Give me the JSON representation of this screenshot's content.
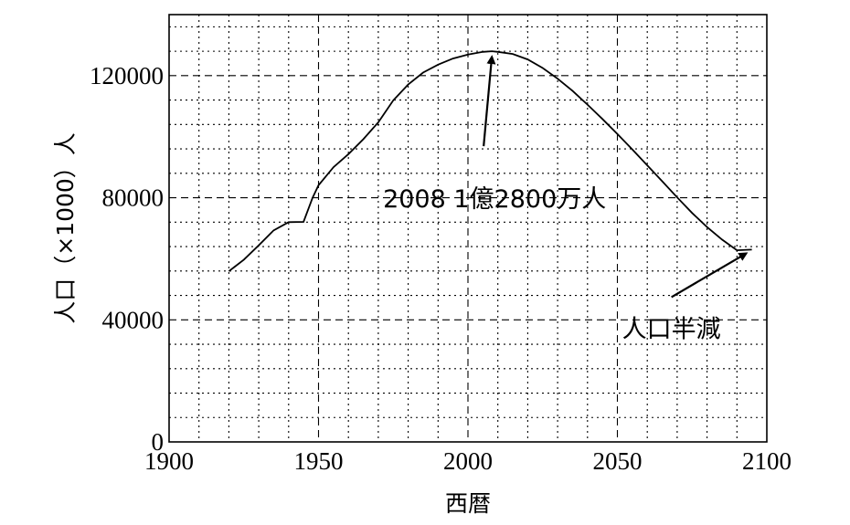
{
  "chart_data": {
    "type": "line",
    "xlabel": "西暦",
    "ylabel": "人口（×1000）人",
    "xlim": [
      1900,
      2100
    ],
    "ylim": [
      0,
      140000
    ],
    "x_ticks": [
      1900,
      1950,
      2000,
      2050,
      2100
    ],
    "x_tick_labels": [
      "1900",
      "1950",
      "2000",
      "2050",
      "2100"
    ],
    "y_ticks": [
      0,
      40000,
      80000,
      120000
    ],
    "y_tick_labels": [
      "0",
      "40000",
      "80000",
      "120000"
    ],
    "grid": true,
    "series": [
      {
        "x": [
          1920,
          1925,
          1930,
          1935,
          1940,
          1945,
          1948,
          1950,
          1955,
          1960,
          1965,
          1970,
          1975,
          1980,
          1985,
          1990,
          1995,
          2000,
          2005,
          2008,
          2010,
          2015,
          2020,
          2025,
          2030,
          2035,
          2040,
          2045,
          2050,
          2055,
          2060,
          2065,
          2070,
          2075,
          2080,
          2085,
          2090,
          2095
        ],
        "y": [
          55900,
          59700,
          64400,
          69300,
          72000,
          72100,
          80000,
          84100,
          90000,
          94300,
          99200,
          104700,
          111900,
          117100,
          121000,
          123600,
          125600,
          126900,
          127800,
          128000,
          127800,
          127100,
          125300,
          122500,
          119000,
          115000,
          110500,
          105800,
          100900,
          95800,
          90600,
          85400,
          80100,
          75000,
          70400,
          66300,
          62800,
          63000
        ]
      }
    ],
    "annotations": [
      {
        "text": "2008 1億2800万人",
        "x": 2008,
        "y": 128000
      },
      {
        "text": "人口半減",
        "x": 2095,
        "y": 63000
      }
    ]
  }
}
